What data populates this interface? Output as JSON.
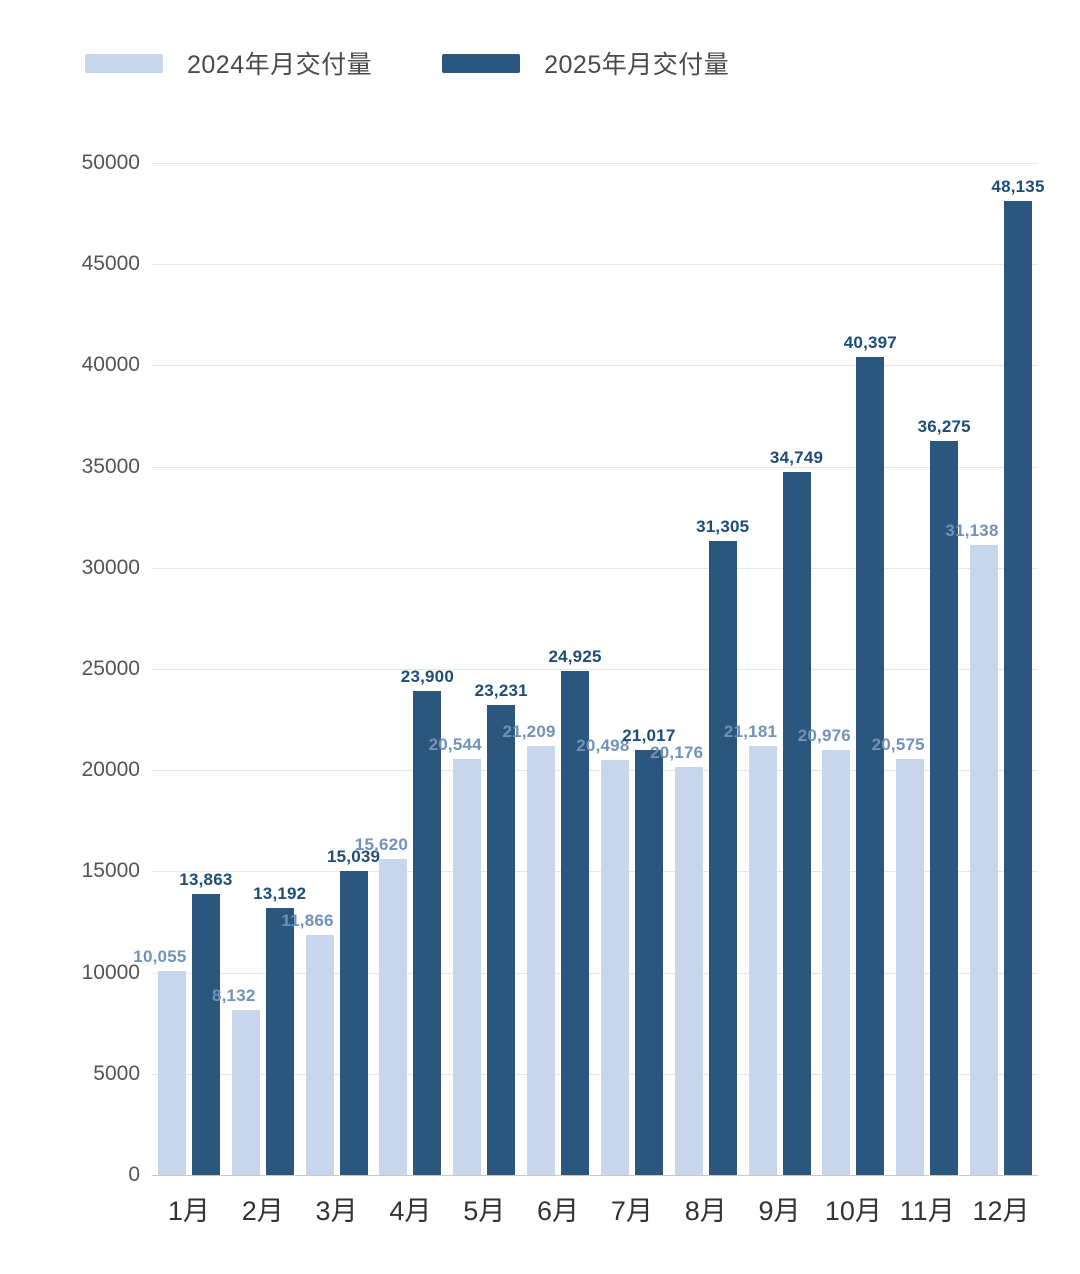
{
  "legend": {
    "items": [
      {
        "label": "2024年月交付量",
        "swatch_color": "#c8d6ec"
      },
      {
        "label": "2025年月交付量",
        "swatch_color": "#2b567e"
      }
    ]
  },
  "colors": {
    "background": "#ffffff",
    "bar_2024": "#c8d6ec",
    "bar_2025": "#2b567e",
    "value_label_2024": "#7292ba",
    "value_label_2025": "#1d4d78",
    "axis_tick_text": "#555555",
    "month_label_text": "#333333",
    "gridline": "#e7e7e7",
    "baseline": "#c8c8c8",
    "legend_text": "#4a4a4a"
  },
  "chart_data": {
    "type": "bar",
    "title": "",
    "xlabel": "",
    "ylabel": "",
    "categories": [
      "1月",
      "2月",
      "3月",
      "4月",
      "5月",
      "6月",
      "7月",
      "8月",
      "9月",
      "10月",
      "11月",
      "12月"
    ],
    "series": [
      {
        "name": "2024年月交付量",
        "color": "#c8d6ec",
        "values": [
          10055,
          8132,
          11866,
          15620,
          20544,
          21209,
          20498,
          20176,
          21181,
          20976,
          20575,
          31138
        ]
      },
      {
        "name": "2025年月交付量",
        "color": "#2b567e",
        "values": [
          13863,
          13192,
          15039,
          23900,
          23231,
          24925,
          21017,
          31305,
          34749,
          40397,
          36275,
          48135
        ]
      }
    ],
    "ylim": [
      0,
      50000
    ],
    "y_tick_interval": 5000,
    "y_ticks": [
      0,
      5000,
      10000,
      15000,
      20000,
      25000,
      30000,
      35000,
      40000,
      45000,
      50000
    ],
    "grid": true,
    "legend_position": "top-left",
    "value_labels": "comma-separated-above-each-bar"
  }
}
